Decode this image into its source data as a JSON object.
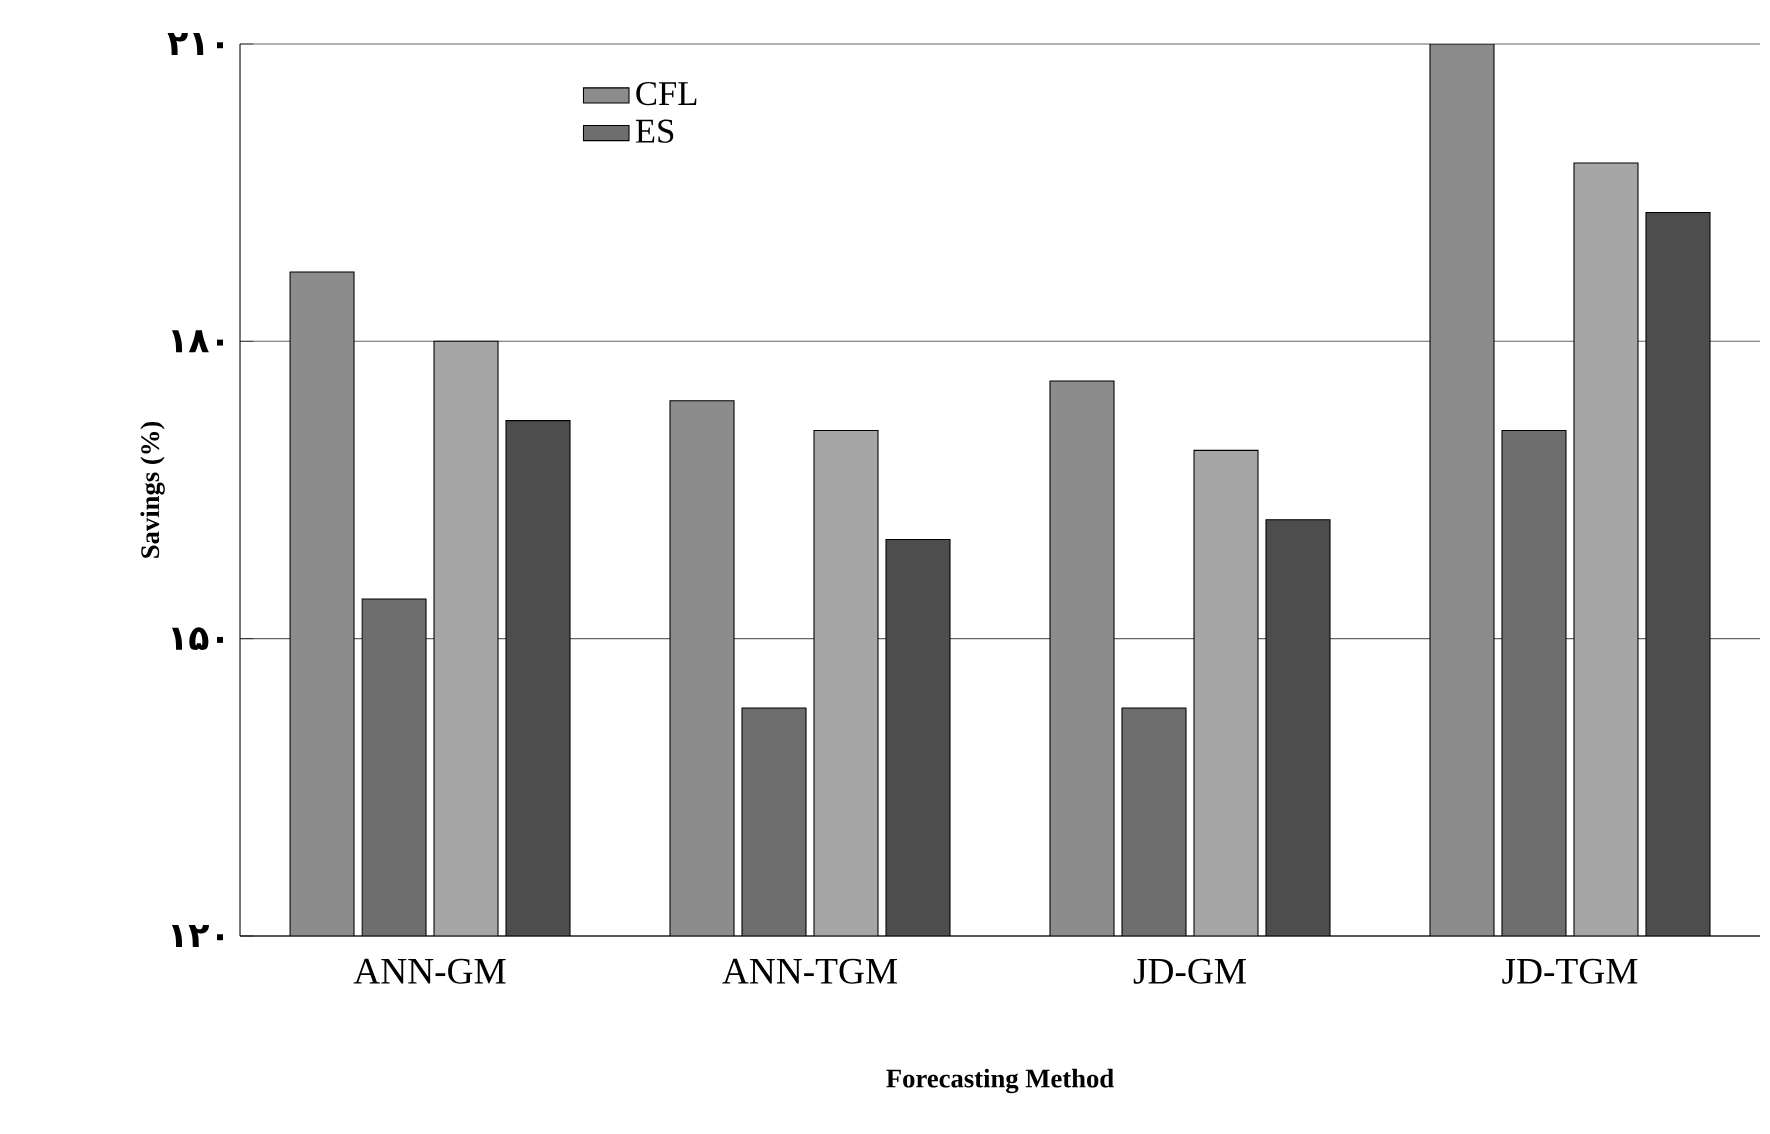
{
  "chart_data": {
    "type": "bar",
    "xlabel": "Forecasting Method",
    "ylabel": "Savings (%)",
    "categories": [
      "ANN-GM",
      "ANN-TGM",
      "JD-GM",
      "JD-TGM"
    ],
    "series": [
      {
        "name": "CFL",
        "color": "#8c8c8c",
        "values": [
          187,
          174,
          176,
          210
        ]
      },
      {
        "name": "ES",
        "color": "#6e6e6e",
        "values": [
          154,
          143,
          143,
          171
        ]
      },
      {
        "color": "#a6a6a6",
        "values": [
          180,
          171,
          169,
          198
        ]
      },
      {
        "color": "#4d4d4d",
        "values": [
          172,
          160,
          162,
          193
        ]
      }
    ],
    "ylim": [
      120,
      210
    ],
    "yticks": [
      {
        "value": 120,
        "label": "۱۲۰"
      },
      {
        "value": 150,
        "label": "۱۵۰"
      },
      {
        "value": 180,
        "label": "۱۸۰"
      },
      {
        "value": 210,
        "label": "۲۱۰"
      }
    ],
    "grid": "y",
    "legend": "top left"
  }
}
